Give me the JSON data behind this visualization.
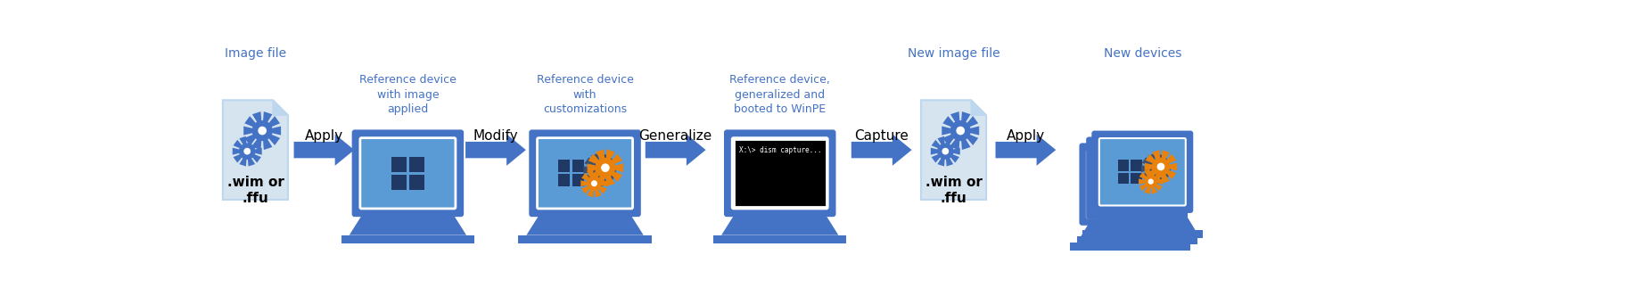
{
  "fig_width": 18.36,
  "fig_height": 3.23,
  "dpi": 100,
  "bg_color": "#ffffff",
  "arrow_color": "#4472C4",
  "blue_label_color": "#4472C4",
  "file_icon_bg": "#D6E4F0",
  "file_icon_border": "#BDD7EE",
  "laptop_body_color": "#4472C4",
  "laptop_screen_inner": "#5B9BD5",
  "win_logo_color": "#1F3864",
  "gear_blue": "#4472C4",
  "gear_orange": "#E8820C",
  "gear_dark": "#3A5070",
  "terminal_bg": "#000000",
  "terminal_text": "#ffffff",
  "xlim": [
    0,
    1836
  ],
  "ylim": [
    0,
    323
  ]
}
